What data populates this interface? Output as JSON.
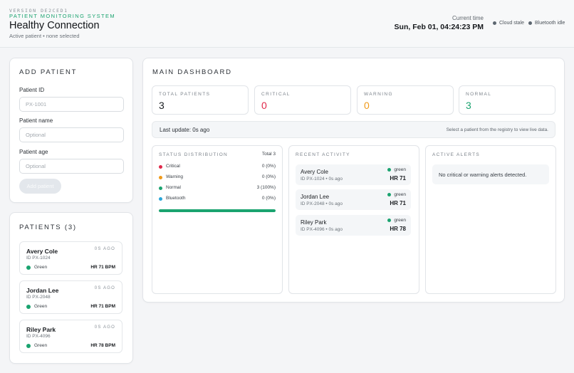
{
  "header": {
    "version": "VERSION DE2CED1",
    "system": "PATIENT MONITORING SYSTEM",
    "title": "Healthy Connection",
    "subtitle": "Active patient • none selected",
    "time_label": "Current time",
    "time_value": "Sun, Feb 01, 04:24:23 PM",
    "cloud_status": "Cloud stale",
    "bluetooth_status": "Bluetooth idle"
  },
  "add_patient": {
    "title": "ADD PATIENT",
    "id_label": "Patient ID",
    "id_placeholder": "PX-1001",
    "name_label": "Patient name",
    "name_placeholder": "Optional",
    "age_label": "Patient age",
    "age_placeholder": "Optional",
    "button_label": "Add patient"
  },
  "patients": {
    "title": "PATIENTS (3)",
    "items": [
      {
        "name": "Avery Cole",
        "id": "ID PX-1024",
        "ago": "0S AGO",
        "status": "Green",
        "hr": "HR 71 BPM"
      },
      {
        "name": "Jordan Lee",
        "id": "ID PX-2048",
        "ago": "0S AGO",
        "status": "Green",
        "hr": "HR 71 BPM"
      },
      {
        "name": "Riley Park",
        "id": "ID PX-4096",
        "ago": "0S AGO",
        "status": "Green",
        "hr": "HR 78 BPM"
      }
    ]
  },
  "dashboard": {
    "title": "MAIN DASHBOARD",
    "stats": [
      {
        "label": "TOTAL PATIENTS",
        "value": "3",
        "color": "#1a1d21"
      },
      {
        "label": "CRITICAL",
        "value": "0",
        "color": "#e0284a"
      },
      {
        "label": "WARNING",
        "value": "0",
        "color": "#f09a1a"
      },
      {
        "label": "NORMAL",
        "value": "3",
        "color": "#1aa36f"
      }
    ],
    "last_update": "Last update: 0s ago",
    "hint": "Select a patient from the registry to view live data.",
    "distribution": {
      "title": "STATUS DISTRIBUTION",
      "total": "Total 3",
      "rows": [
        {
          "name": "Critical",
          "value": "0 (0%)",
          "color": "#e0284a"
        },
        {
          "name": "Warning",
          "value": "0 (0%)",
          "color": "#f09a1a"
        },
        {
          "name": "Normal",
          "value": "3 (100%)",
          "color": "#1aa36f"
        },
        {
          "name": "Bluetooth",
          "value": "0 (0%)",
          "color": "#2aa6d9"
        }
      ],
      "normal_fraction": 1.0
    },
    "activity": {
      "title": "RECENT ACTIVITY",
      "items": [
        {
          "name": "Avery Cole",
          "meta": "ID PX-1024 • 0s ago",
          "status": "green",
          "hr": "HR 71"
        },
        {
          "name": "Jordan Lee",
          "meta": "ID PX-2048 • 0s ago",
          "status": "green",
          "hr": "HR 71"
        },
        {
          "name": "Riley Park",
          "meta": "ID PX-4096 • 0s ago",
          "status": "green",
          "hr": "HR 78"
        }
      ]
    },
    "alerts": {
      "title": "ACTIVE ALERTS",
      "empty_text": "No critical or warning alerts detected."
    }
  }
}
